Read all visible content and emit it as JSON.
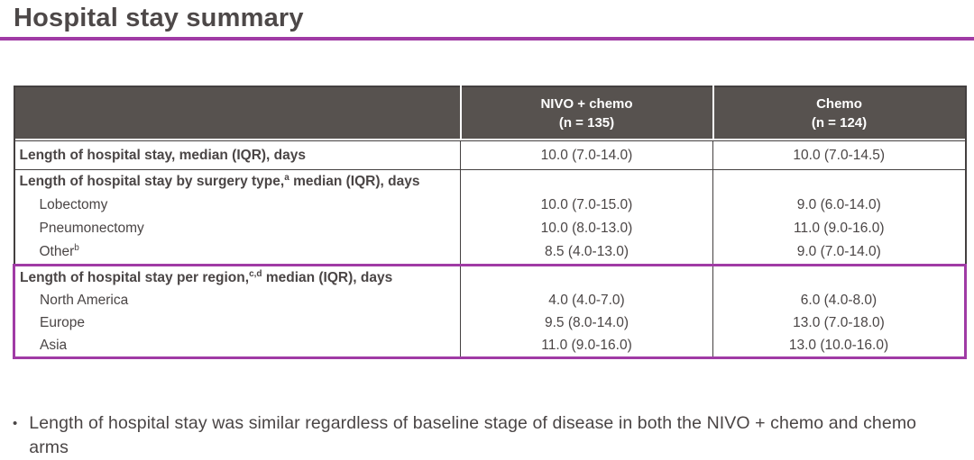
{
  "title": "Hospital stay summary",
  "colors": {
    "accent_magenta": "#A03BA5",
    "header_background": "#57524F",
    "body_text": "#4A4545",
    "table_border": "#444040"
  },
  "table": {
    "columns": [
      {
        "name": "NIVO + chemo",
        "n": "(n = 135)"
      },
      {
        "name": "Chemo",
        "n": "(n = 124)"
      }
    ],
    "overall_row": {
      "label": "Length of hospital stay, median (IQR), days",
      "nivo": "10.0 (7.0-14.0)",
      "chemo": "10.0 (7.0-14.5)"
    },
    "surgery_section": {
      "header_main": "Length of hospital stay by surgery type,",
      "header_sup": "a",
      "header_tail": " median (IQR), days",
      "rows": [
        {
          "label": "Lobectomy",
          "sup": "",
          "nivo": "10.0 (7.0-15.0)",
          "chemo": "9.0 (6.0-14.0)"
        },
        {
          "label": "Pneumonectomy",
          "sup": "",
          "nivo": "10.0 (8.0-13.0)",
          "chemo": "11.0 (9.0-16.0)"
        },
        {
          "label": "Other",
          "sup": "b",
          "nivo": "8.5 (4.0-13.0)",
          "chemo": "9.0 (7.0-14.0)"
        }
      ]
    },
    "region_section": {
      "header_main": "Length of hospital stay per region,",
      "header_sup": "c,d",
      "header_tail": " median (IQR), days",
      "rows": [
        {
          "label": "North America",
          "sup": "",
          "nivo": "4.0 (4.0-7.0)",
          "chemo": "6.0 (4.0-8.0)"
        },
        {
          "label": "Europe",
          "sup": "",
          "nivo": "9.5 (8.0-14.0)",
          "chemo": "13.0 (7.0-18.0)"
        },
        {
          "label": "Asia",
          "sup": "",
          "nivo": "11.0 (9.0-16.0)",
          "chemo": "13.0 (10.0-16.0)"
        }
      ]
    }
  },
  "bullet": {
    "marker": "•",
    "text": "Length of hospital stay was similar regardless of baseline stage of disease in both the NIVO + chemo and chemo arms"
  }
}
